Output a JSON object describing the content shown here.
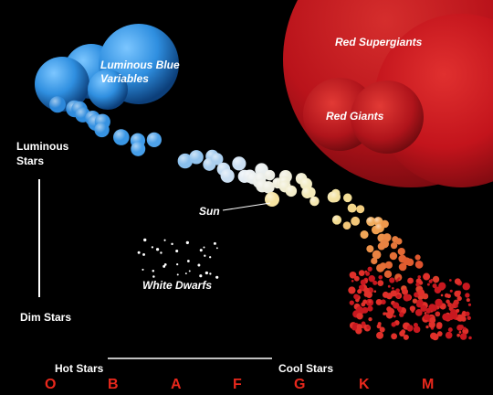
{
  "labels": {
    "luminous_stars": "Luminous\nStars",
    "dim_stars": "Dim Stars",
    "hot_stars": "Hot Stars",
    "cool_stars": "Cool Stars",
    "luminous_blue_variables": "Luminous Blue\nVariables",
    "red_supergiants": "Red Supergiants",
    "red_giants": "Red Giants",
    "sun": "Sun",
    "white_dwarfs": "White Dwarfs"
  },
  "spectral_classes": [
    "O",
    "B",
    "A",
    "F",
    "G",
    "K",
    "M"
  ],
  "colors": {
    "background": "#000000",
    "class_letters": "#e8281c",
    "blue_star": "#2f8fe0",
    "red_star": "#d01820",
    "sun_yellow": "#f3dc90",
    "label_text": "#ffffff"
  }
}
